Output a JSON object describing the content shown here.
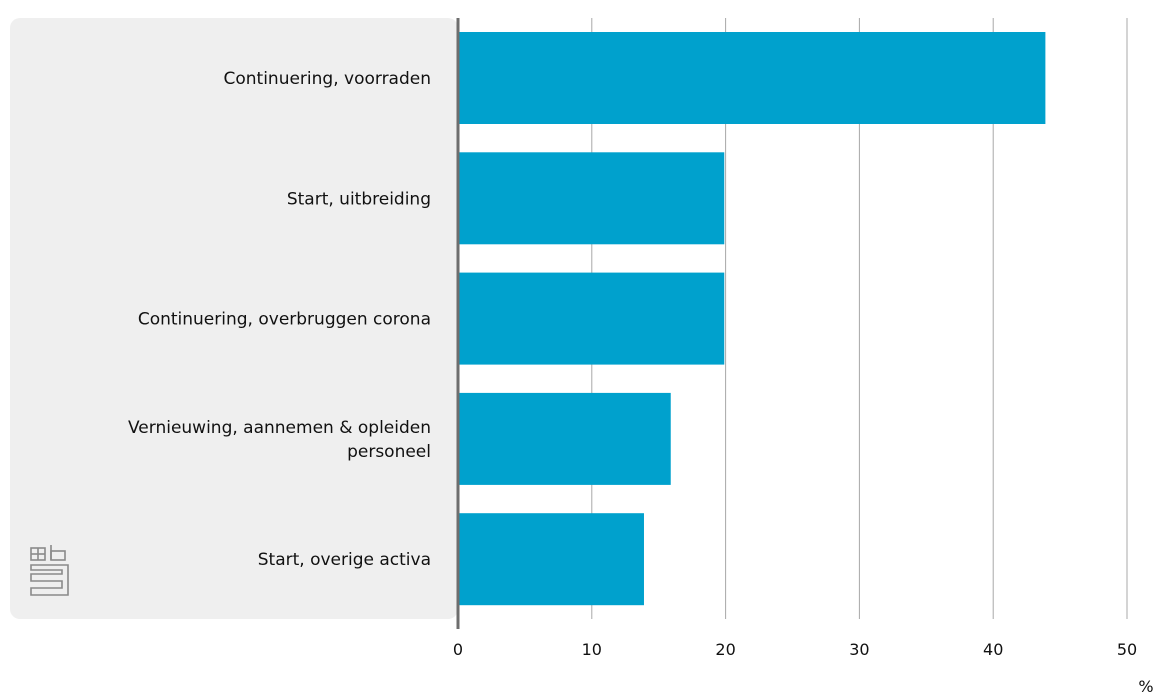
{
  "chart_data": {
    "type": "bar",
    "orientation": "horizontal",
    "categories": [
      [
        "Continuering, voorraden"
      ],
      [
        "Start, uitbreiding"
      ],
      [
        "Continuering, overbruggen corona"
      ],
      [
        "Vernieuwing, aannemen & opleiden",
        "personeel"
      ],
      [
        "Start, overige activa"
      ]
    ],
    "values": [
      43.9,
      19.9,
      19.9,
      15.9,
      13.9
    ],
    "xlim": [
      0,
      50
    ],
    "xticks": [
      "0",
      "10",
      "20",
      "30",
      "40",
      "50"
    ],
    "unit_label": "%",
    "grid": true,
    "colors": {
      "bar": "#00a1cd",
      "label_panel": "#efefef",
      "axis": "#6e6e6e",
      "grid": "#a8a8a8",
      "logo": "#8a8a8a"
    }
  },
  "logo_icon": "cbs-logo-icon"
}
